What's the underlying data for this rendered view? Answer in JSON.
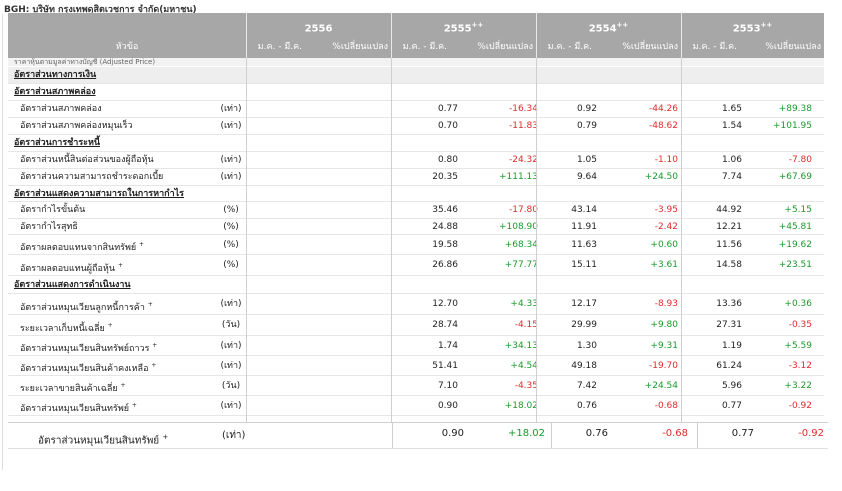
{
  "title": "BGH: บริษัท กรุงเทพดุสิตเวชการ จำกัด(มหาชน)",
  "header": {
    "topic": "หัวข้อ",
    "years": [
      {
        "label": "2556",
        "mark": ""
      },
      {
        "label": "2555",
        "mark": "++"
      },
      {
        "label": "2554",
        "mark": "++"
      },
      {
        "label": "2553",
        "mark": "++"
      }
    ],
    "period_label": "ม.ค. - มี.ค.",
    "change_label": "%เปลี่ยนแปลง"
  },
  "cut_row": "ราคาหุ้นตามมูลค่าทางบัญชี (Adjusted Price)",
  "rows": [
    {
      "kind": "section",
      "label": "อัตราส่วนทางการเงิน",
      "unit": "",
      "sup": "",
      "v2555": "",
      "c2555": "",
      "c2555_sign": "",
      "v2554": "",
      "c2554": "",
      "c2554_sign": "",
      "v2553": "",
      "c2553": "",
      "c2553_sign": ""
    },
    {
      "kind": "group",
      "label": "อัตราส่วนสภาพคล่อง",
      "unit": "",
      "sup": "",
      "v2555": "",
      "c2555": "",
      "c2555_sign": "",
      "v2554": "",
      "c2554": "",
      "c2554_sign": "",
      "v2553": "",
      "c2553": "",
      "c2553_sign": ""
    },
    {
      "kind": "item",
      "label": "อัตราส่วนสภาพคล่อง",
      "unit": "(เท่า)",
      "sup": "",
      "v2555": "0.77",
      "c2555": "-16.34",
      "c2555_sign": "neg",
      "v2554": "0.92",
      "c2554": "-44.26",
      "c2554_sign": "neg",
      "v2553": "1.65",
      "c2553": "+89.38",
      "c2553_sign": "pos"
    },
    {
      "kind": "item",
      "label": "อัตราส่วนสภาพคล่องหมุนเร็ว",
      "unit": "(เท่า)",
      "sup": "",
      "v2555": "0.70",
      "c2555": "-11.83",
      "c2555_sign": "neg",
      "v2554": "0.79",
      "c2554": "-48.62",
      "c2554_sign": "neg",
      "v2553": "1.54",
      "c2553": "+101.95",
      "c2553_sign": "pos"
    },
    {
      "kind": "group",
      "label": "อัตราส่วนการชำระหนี้",
      "unit": "",
      "sup": "",
      "v2555": "",
      "c2555": "",
      "c2555_sign": "",
      "v2554": "",
      "c2554": "",
      "c2554_sign": "",
      "v2553": "",
      "c2553": "",
      "c2553_sign": ""
    },
    {
      "kind": "item",
      "label": "อัตราส่วนหนี้สินต่อส่วนของผู้ถือหุ้น",
      "unit": "(เท่า)",
      "sup": "",
      "v2555": "0.80",
      "c2555": "-24.32",
      "c2555_sign": "neg",
      "v2554": "1.05",
      "c2554": "-1.10",
      "c2554_sign": "neg",
      "v2553": "1.06",
      "c2553": "-7.80",
      "c2553_sign": "neg"
    },
    {
      "kind": "item",
      "label": "อัตราส่วนความสามารถชำระดอกเบี้ย",
      "unit": "(เท่า)",
      "sup": "",
      "v2555": "20.35",
      "c2555": "+111.13",
      "c2555_sign": "pos",
      "v2554": "9.64",
      "c2554": "+24.50",
      "c2554_sign": "pos",
      "v2553": "7.74",
      "c2553": "+67.69",
      "c2553_sign": "pos"
    },
    {
      "kind": "group",
      "label": "อัตราส่วนแสดงความสามารถในการหากำไร",
      "unit": "",
      "sup": "",
      "v2555": "",
      "c2555": "",
      "c2555_sign": "",
      "v2554": "",
      "c2554": "",
      "c2554_sign": "",
      "v2553": "",
      "c2553": "",
      "c2553_sign": ""
    },
    {
      "kind": "item",
      "label": "อัตรากำไรขั้นต้น",
      "unit": "(%)",
      "sup": "",
      "v2555": "35.46",
      "c2555": "-17.80",
      "c2555_sign": "neg",
      "v2554": "43.14",
      "c2554": "-3.95",
      "c2554_sign": "neg",
      "v2553": "44.92",
      "c2553": "+5.15",
      "c2553_sign": "pos"
    },
    {
      "kind": "item",
      "label": "อัตรากำไรสุทธิ",
      "unit": "(%)",
      "sup": "",
      "v2555": "24.88",
      "c2555": "+108.90",
      "c2555_sign": "pos",
      "v2554": "11.91",
      "c2554": "-2.42",
      "c2554_sign": "neg",
      "v2553": "12.21",
      "c2553": "+45.81",
      "c2553_sign": "pos"
    },
    {
      "kind": "item",
      "label": "อัตราผลตอบแทนจากสินทรัพย์",
      "unit": "(%)",
      "sup": "+",
      "v2555": "19.58",
      "c2555": "+68.34",
      "c2555_sign": "pos",
      "v2554": "11.63",
      "c2554": "+0.60",
      "c2554_sign": "pos",
      "v2553": "11.56",
      "c2553": "+19.62",
      "c2553_sign": "pos"
    },
    {
      "kind": "item",
      "label": "อัตราผลตอบแทนผู้ถือหุ้น",
      "unit": "(%)",
      "sup": "+",
      "v2555": "26.86",
      "c2555": "+77.77",
      "c2555_sign": "pos",
      "v2554": "15.11",
      "c2554": "+3.61",
      "c2554_sign": "pos",
      "v2553": "14.58",
      "c2553": "+23.51",
      "c2553_sign": "pos"
    },
    {
      "kind": "group",
      "label": "อัตราส่วนแสดงการดำเนินงาน",
      "unit": "",
      "sup": "",
      "v2555": "",
      "c2555": "",
      "c2555_sign": "",
      "v2554": "",
      "c2554": "",
      "c2554_sign": "",
      "v2553": "",
      "c2553": "",
      "c2553_sign": ""
    },
    {
      "kind": "item",
      "label": "อัตราส่วนหมุนเวียนลูกหนี้การค้า",
      "unit": "(เท่า)",
      "sup": "+",
      "v2555": "12.70",
      "c2555": "+4.33",
      "c2555_sign": "pos",
      "v2554": "12.17",
      "c2554": "-8.93",
      "c2554_sign": "neg",
      "v2553": "13.36",
      "c2553": "+0.36",
      "c2553_sign": "pos"
    },
    {
      "kind": "item",
      "label": "ระยะเวลาเก็บหนี้เฉลี่ย",
      "unit": "(วัน)",
      "sup": "+",
      "v2555": "28.74",
      "c2555": "-4.15",
      "c2555_sign": "neg",
      "v2554": "29.99",
      "c2554": "+9.80",
      "c2554_sign": "pos",
      "v2553": "27.31",
      "c2553": "-0.35",
      "c2553_sign": "neg"
    },
    {
      "kind": "item",
      "label": "อัตราส่วนหมุนเวียนสินทรัพย์ถาวร",
      "unit": "(เท่า)",
      "sup": "+",
      "v2555": "1.74",
      "c2555": "+34.13",
      "c2555_sign": "pos",
      "v2554": "1.30",
      "c2554": "+9.31",
      "c2554_sign": "pos",
      "v2553": "1.19",
      "c2553": "+5.59",
      "c2553_sign": "pos"
    },
    {
      "kind": "item",
      "label": "อัตราส่วนหมุนเวียนสินค้าคงเหลือ",
      "unit": "(เท่า)",
      "sup": "+",
      "v2555": "51.41",
      "c2555": "+4.54",
      "c2555_sign": "pos",
      "v2554": "49.18",
      "c2554": "-19.70",
      "c2554_sign": "neg",
      "v2553": "61.24",
      "c2553": "-3.12",
      "c2553_sign": "neg"
    },
    {
      "kind": "item",
      "label": "ระยะเวลาขายสินค้าเฉลี่ย",
      "unit": "(วัน)",
      "sup": "+",
      "v2555": "7.10",
      "c2555": "-4.35",
      "c2555_sign": "neg",
      "v2554": "7.42",
      "c2554": "+24.54",
      "c2554_sign": "pos",
      "v2553": "5.96",
      "c2553": "+3.22",
      "c2553_sign": "pos"
    },
    {
      "kind": "item",
      "label": "อัตราส่วนหมุนเวียนสินทรัพย์",
      "unit": "(เท่า)",
      "sup": "+",
      "v2555": "0.90",
      "c2555": "+18.02",
      "c2555_sign": "pos",
      "v2554": "0.76",
      "c2554": "-0.68",
      "c2554_sign": "neg",
      "v2553": "0.77",
      "c2553": "-0.92",
      "c2553_sign": "neg"
    }
  ],
  "zoomed_row": {
    "label": "อัตราส่วนหมุนเวียนสินทรัพย์",
    "sup": "+",
    "unit": "(เท่า)",
    "v2555": "0.90",
    "c2555": "+18.02",
    "v2554": "0.76",
    "c2554": "-0.68",
    "v2553": "0.77",
    "c2553": "-0.92"
  },
  "colors": {
    "header_bg": "#a7a7a7",
    "positive": "#1a9a2a",
    "negative": "#e02a2a"
  }
}
